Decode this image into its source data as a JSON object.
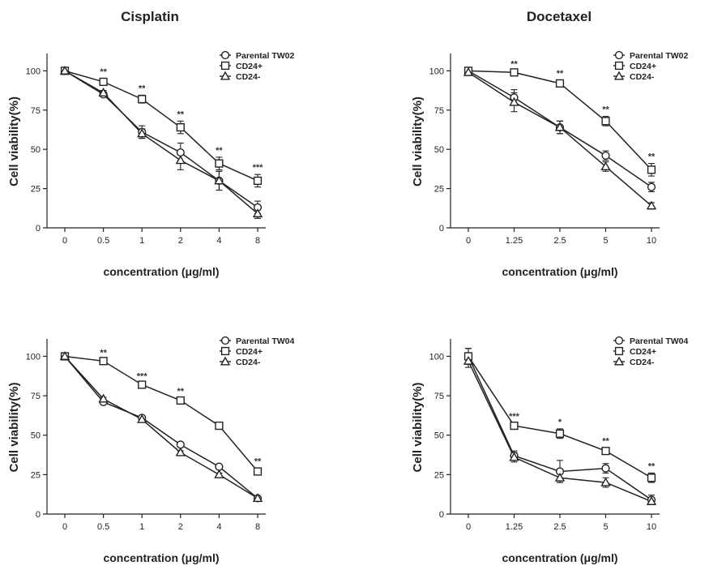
{
  "column_titles": [
    "Cisplatin",
    "Docetaxel"
  ],
  "chart_data": [
    {
      "type": "line",
      "title": "Cisplatin",
      "xlabel": "concentration (μg/ml)",
      "ylabel": "Cell viability(%)",
      "categories": [
        "0",
        "0.5",
        "1",
        "2",
        "4",
        "8"
      ],
      "ylim": [
        0,
        110
      ],
      "yticks": [
        "0",
        "25",
        "50",
        "75",
        "100"
      ],
      "series": [
        {
          "name": "Parental TW02",
          "marker": "circle",
          "values": [
            100,
            85,
            61,
            48,
            30,
            13
          ],
          "errors": [
            0,
            1.5,
            4,
            6,
            6,
            4
          ]
        },
        {
          "name": "CD24+",
          "marker": "square",
          "values": [
            100,
            93,
            82,
            64,
            41,
            30
          ],
          "errors": [
            0,
            2,
            2.5,
            4,
            4,
            4
          ]
        },
        {
          "name": "CD24-",
          "marker": "triangle",
          "values": [
            100,
            86,
            60,
            43,
            30,
            9
          ],
          "errors": [
            0,
            1.5,
            3,
            6,
            6,
            3
          ]
        }
      ],
      "annotations": [
        "",
        "**",
        "**",
        "**",
        "**",
        "***"
      ],
      "legend": "top-right"
    },
    {
      "type": "line",
      "title": "Docetaxel",
      "xlabel": "concentration (μg/ml)",
      "ylabel": "Cell viability(%)",
      "categories": [
        "0",
        "1.25",
        "2.5",
        "5",
        "10"
      ],
      "ylim": [
        0,
        110
      ],
      "yticks": [
        "0",
        "25",
        "50",
        "75",
        "100"
      ],
      "series": [
        {
          "name": "Parental TW02",
          "marker": "circle",
          "values": [
            100,
            83,
            64,
            46,
            26
          ],
          "errors": [
            2,
            5,
            4,
            3,
            3
          ]
        },
        {
          "name": "CD24+",
          "marker": "square",
          "values": [
            100,
            99,
            92,
            68,
            37
          ],
          "errors": [
            2,
            1,
            2,
            3,
            4
          ]
        },
        {
          "name": "CD24-",
          "marker": "triangle",
          "values": [
            99,
            80,
            64,
            39,
            14
          ],
          "errors": [
            2,
            6,
            4,
            3,
            2
          ]
        }
      ],
      "annotations": [
        "",
        "**",
        "**",
        "**",
        "**"
      ],
      "legend": "top-right"
    },
    {
      "type": "line",
      "title": "",
      "xlabel": "concentration (μg/ml)",
      "ylabel": "Cell viability(%)",
      "categories": [
        "0",
        "0.5",
        "1",
        "2",
        "4",
        "8"
      ],
      "ylim": [
        0,
        110
      ],
      "yticks": [
        "0",
        "25",
        "50",
        "75",
        "100"
      ],
      "series": [
        {
          "name": "Parental TW04",
          "marker": "circle",
          "values": [
            100,
            71,
            61,
            44,
            30,
            10
          ],
          "errors": [
            0,
            1,
            1,
            1,
            1,
            1
          ]
        },
        {
          "name": "CD24+",
          "marker": "square",
          "values": [
            100,
            97,
            82,
            72,
            56,
            27
          ],
          "errors": [
            0,
            1,
            1,
            1.5,
            2,
            2
          ]
        },
        {
          "name": "CD24-",
          "marker": "triangle",
          "values": [
            100,
            73,
            60,
            39,
            25,
            10
          ],
          "errors": [
            0,
            1,
            1,
            1,
            1,
            1
          ]
        }
      ],
      "annotations": [
        "",
        "**",
        "***",
        "**",
        "",
        "**"
      ],
      "legend": "top-right"
    },
    {
      "type": "line",
      "title": "",
      "xlabel": "concentration (μg/ml)",
      "ylabel": "Cell viability(%)",
      "categories": [
        "0",
        "1.25",
        "2.5",
        "5",
        "10"
      ],
      "ylim": [
        0,
        110
      ],
      "yticks": [
        "0",
        "25",
        "50",
        "75",
        "100"
      ],
      "series": [
        {
          "name": "Parental TW04",
          "marker": "circle",
          "values": [
            100,
            37,
            27,
            29,
            9
          ],
          "errors": [
            5,
            3,
            7,
            3,
            3
          ]
        },
        {
          "name": "CD24+",
          "marker": "square",
          "values": [
            100,
            56,
            51,
            40,
            23
          ],
          "errors": [
            5,
            1.5,
            3,
            2,
            3
          ]
        },
        {
          "name": "CD24-",
          "marker": "triangle",
          "values": [
            97,
            36,
            23,
            20,
            8
          ],
          "errors": [
            4,
            3,
            3,
            3,
            2
          ]
        }
      ],
      "annotations": [
        "",
        "***",
        "*",
        "**",
        "**"
      ],
      "legend": "top-right"
    }
  ]
}
